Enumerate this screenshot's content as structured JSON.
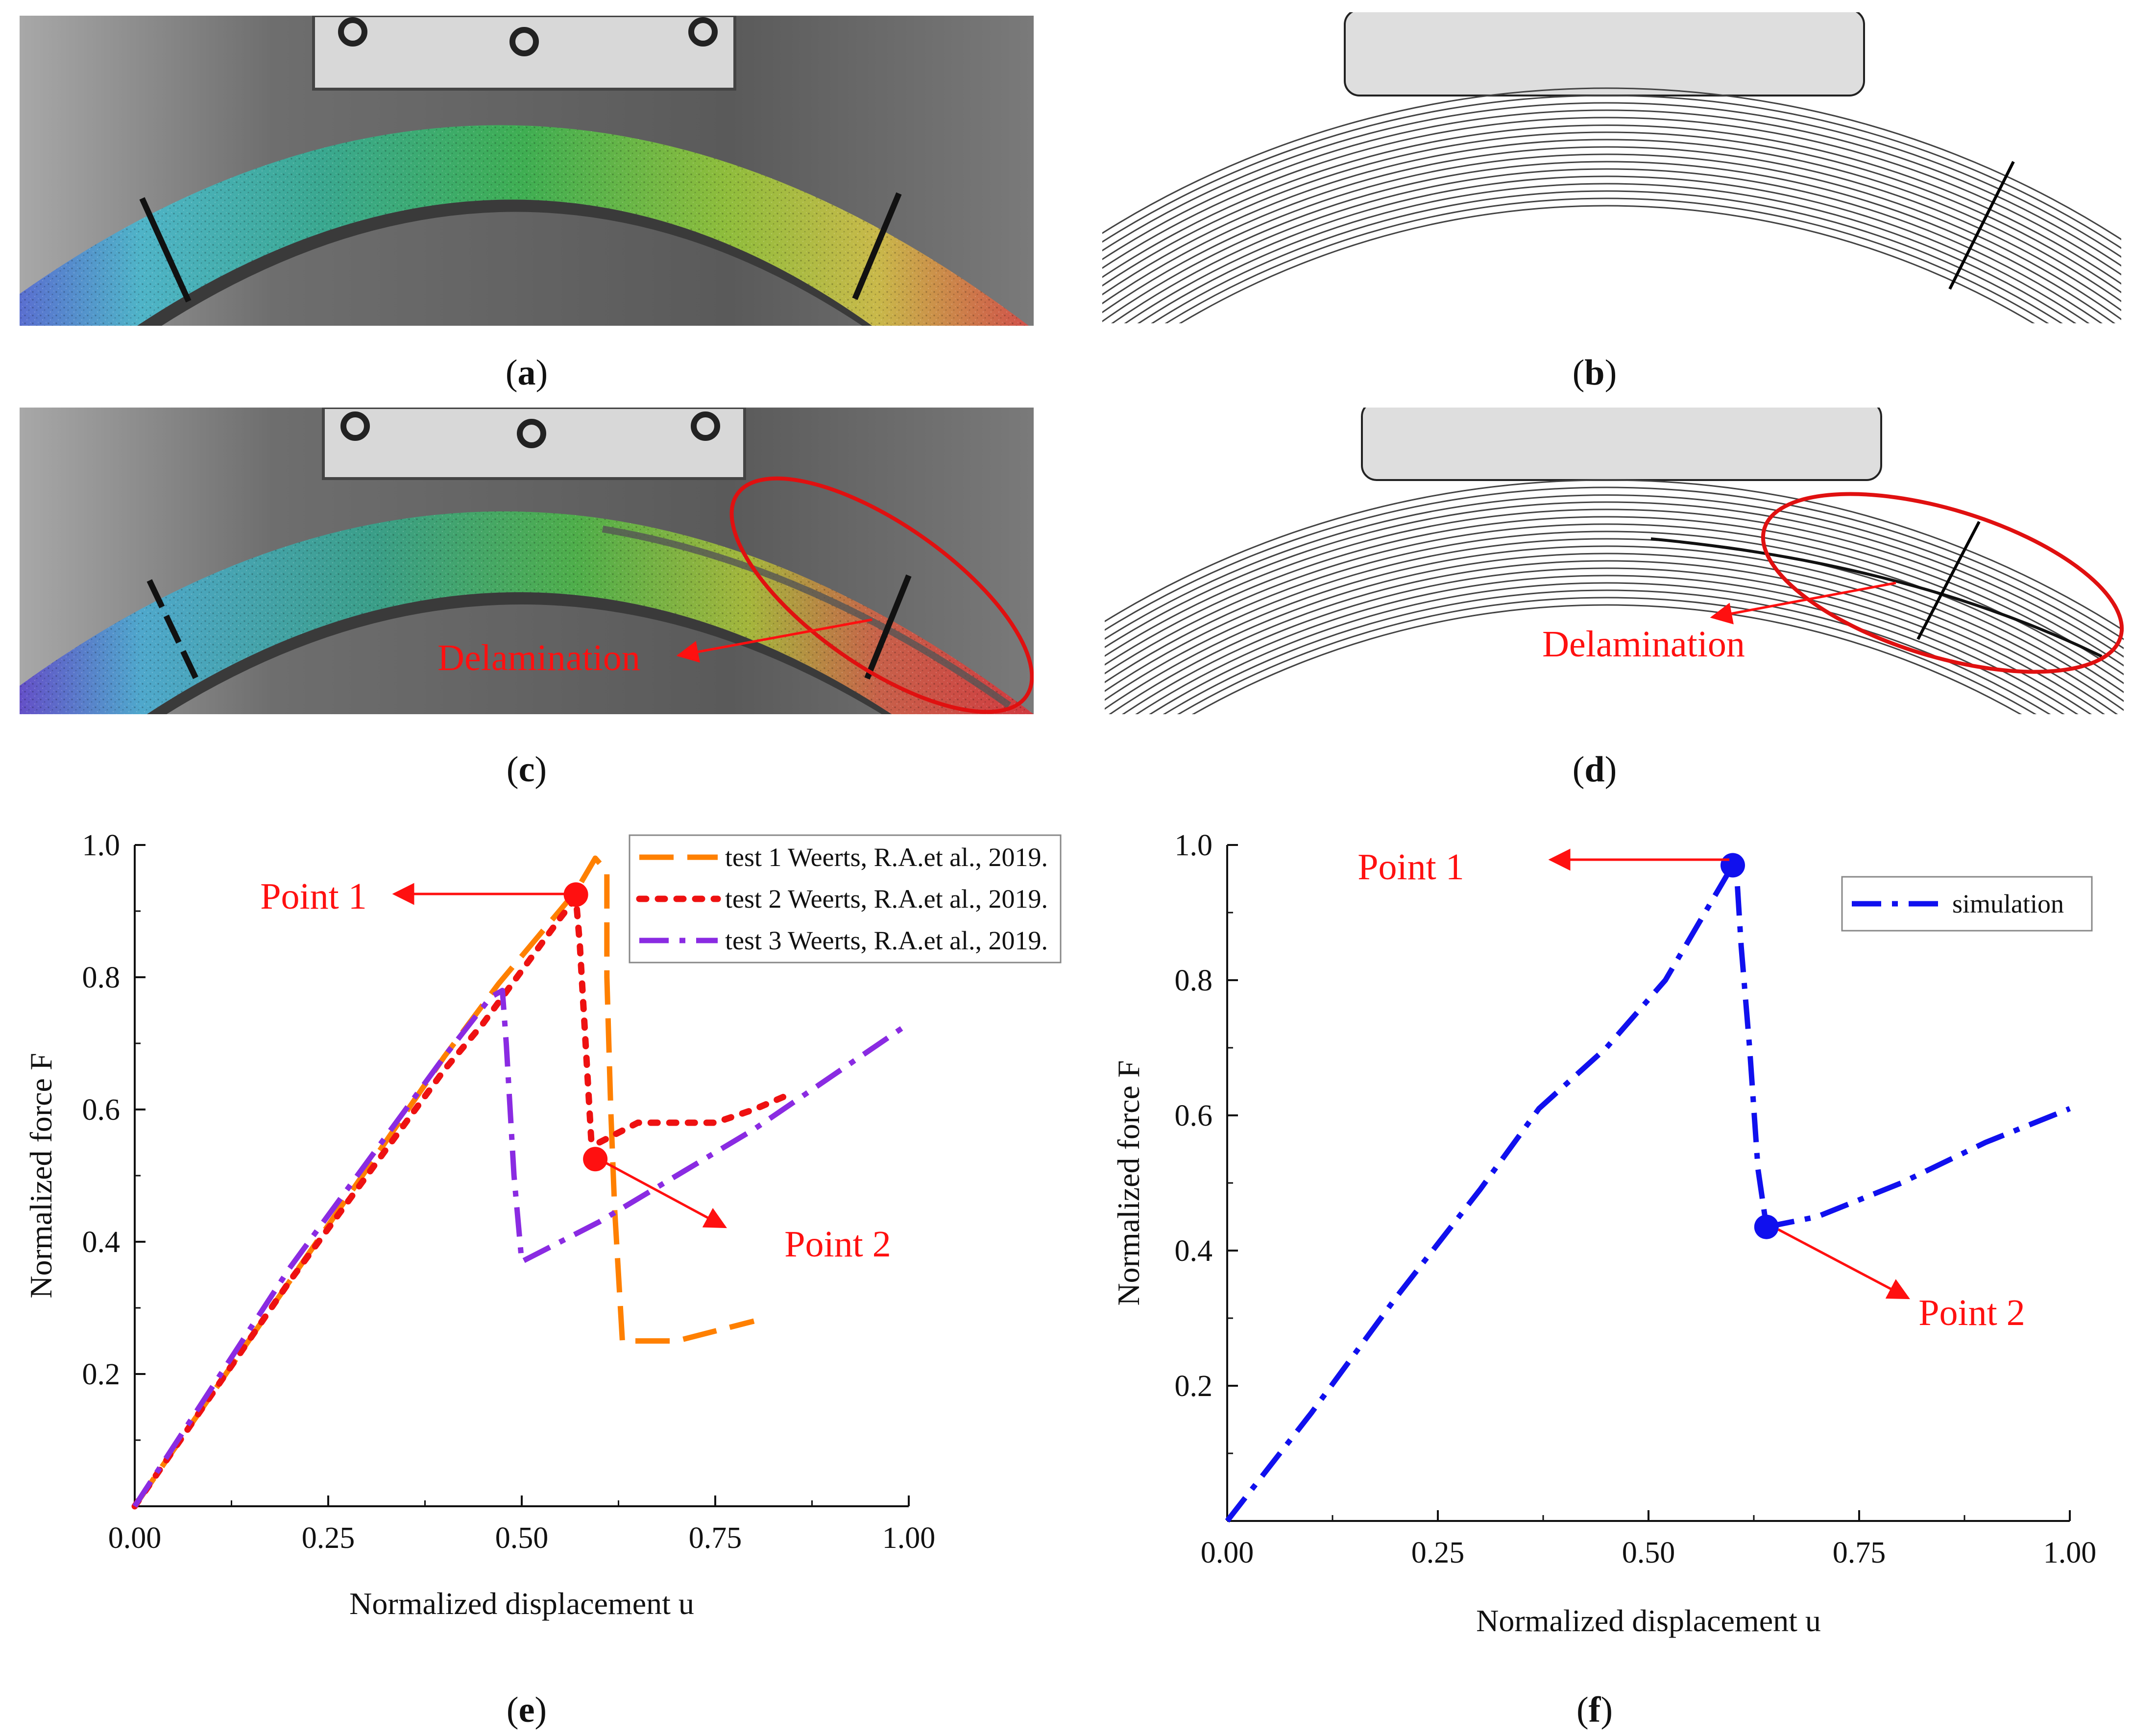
{
  "panels": {
    "a": {
      "label": "a"
    },
    "b": {
      "label": "b"
    },
    "c": {
      "label": "c",
      "annotation": "Delamination"
    },
    "d": {
      "label": "d",
      "annotation": "Delamination"
    },
    "e": {
      "label": "e"
    },
    "f": {
      "label": "f"
    }
  },
  "colors": {
    "test1": "#ff8000",
    "test2": "#ee1111",
    "test3": "#8a2be2",
    "simulation": "#1010ee",
    "annotation": "#ff1010"
  },
  "chart_data": [
    {
      "id": "e",
      "type": "line",
      "xlabel": "Normalized displacement u",
      "ylabel": "Normalized force F",
      "xlim": [
        0,
        1
      ],
      "ylim": [
        0,
        1
      ],
      "xticks": [
        "0.00",
        "0.25",
        "0.50",
        "0.75",
        "1.00"
      ],
      "yticks": [
        "0.2",
        "0.4",
        "0.6",
        "0.8",
        "1.0"
      ],
      "legend_position": "top-right",
      "series": [
        {
          "name": "test 1 Weerts, R.A.et al., 2019.",
          "style": "dashed",
          "x": [
            0,
            0.1,
            0.2,
            0.3,
            0.4,
            0.47,
            0.52,
            0.57,
            0.595,
            0.61,
            0.61,
            0.615,
            0.62,
            0.625,
            0.63,
            0.7,
            0.8
          ],
          "y": [
            0,
            0.17,
            0.34,
            0.51,
            0.68,
            0.79,
            0.86,
            0.93,
            0.98,
            0.96,
            0.8,
            0.6,
            0.45,
            0.35,
            0.25,
            0.25,
            0.28
          ]
        },
        {
          "name": "test 2 Weerts, R.A.et al., 2019.",
          "style": "dotted",
          "x": [
            0,
            0.1,
            0.2,
            0.3,
            0.4,
            0.45,
            0.5,
            0.55,
            0.57,
            0.575,
            0.58,
            0.585,
            0.59,
            0.6,
            0.65,
            0.75,
            0.8,
            0.84
          ],
          "y": [
            0,
            0.17,
            0.34,
            0.5,
            0.66,
            0.73,
            0.81,
            0.89,
            0.92,
            0.85,
            0.75,
            0.65,
            0.55,
            0.55,
            0.58,
            0.58,
            0.6,
            0.62
          ]
        },
        {
          "name": "test 3 Weerts, R.A.et al., 2019.",
          "style": "dashdot",
          "x": [
            0,
            0.1,
            0.2,
            0.3,
            0.4,
            0.46,
            0.475,
            0.48,
            0.49,
            0.5,
            0.6,
            0.7,
            0.8,
            0.9,
            1.0
          ],
          "y": [
            0,
            0.18,
            0.36,
            0.52,
            0.68,
            0.77,
            0.78,
            0.7,
            0.5,
            0.37,
            0.43,
            0.5,
            0.57,
            0.65,
            0.73
          ]
        }
      ],
      "points": [
        {
          "label": "Point 1",
          "x": 0.57,
          "y": 0.925
        },
        {
          "label": "Point 2",
          "x": 0.595,
          "y": 0.525
        }
      ]
    },
    {
      "id": "f",
      "type": "line",
      "xlabel": "Normalized displacement u",
      "ylabel": "Normalized force F",
      "xlim": [
        0,
        1
      ],
      "ylim": [
        0,
        1
      ],
      "xticks": [
        "0.00",
        "0.25",
        "0.50",
        "0.75",
        "1.00"
      ],
      "yticks": [
        "0.2",
        "0.4",
        "0.6",
        "0.8",
        "1.0"
      ],
      "legend_position": "top-right",
      "series": [
        {
          "name": "simulation",
          "style": "dashdot",
          "x": [
            0,
            0.1,
            0.2,
            0.3,
            0.37,
            0.45,
            0.52,
            0.6,
            0.605,
            0.61,
            0.62,
            0.63,
            0.64,
            0.7,
            0.8,
            0.9,
            1.0
          ],
          "y": [
            0,
            0.16,
            0.33,
            0.49,
            0.61,
            0.7,
            0.8,
            0.97,
            0.95,
            0.85,
            0.7,
            0.52,
            0.435,
            0.45,
            0.5,
            0.56,
            0.61
          ]
        }
      ],
      "points": [
        {
          "label": "Point 1",
          "x": 0.6,
          "y": 0.97
        },
        {
          "label": "Point 2",
          "x": 0.64,
          "y": 0.435
        }
      ]
    }
  ]
}
